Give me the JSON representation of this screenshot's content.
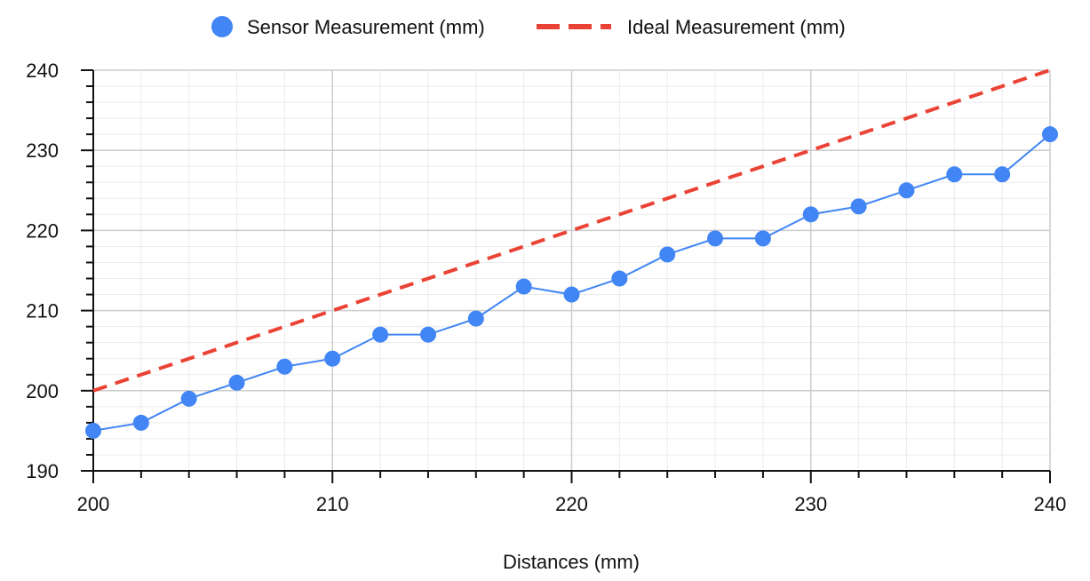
{
  "chart_data": {
    "type": "line",
    "title": "",
    "xlabel": "Distances (mm)",
    "ylabel": "",
    "xlim": [
      200,
      240
    ],
    "ylim": [
      190,
      240
    ],
    "x_ticks": [
      200,
      210,
      220,
      230,
      240
    ],
    "y_ticks": [
      190,
      200,
      210,
      220,
      230,
      240
    ],
    "grid": true,
    "legend_position": "top",
    "series": [
      {
        "name": "Sensor Measurement (mm)",
        "style": "line-with-markers",
        "color": "#4285F4",
        "x": [
          200,
          202,
          204,
          206,
          208,
          210,
          212,
          214,
          216,
          218,
          220,
          222,
          224,
          226,
          228,
          230,
          232,
          234,
          236,
          238,
          240
        ],
        "y": [
          195,
          196,
          199,
          201,
          203,
          204,
          207,
          207,
          209,
          213,
          212,
          214,
          217,
          219,
          219,
          222,
          223,
          225,
          227,
          227,
          232
        ]
      },
      {
        "name": "Ideal Measurement (mm)",
        "style": "dashed-line",
        "color": "#EA4335",
        "x": [
          200,
          240
        ],
        "y": [
          200,
          240
        ]
      }
    ]
  }
}
